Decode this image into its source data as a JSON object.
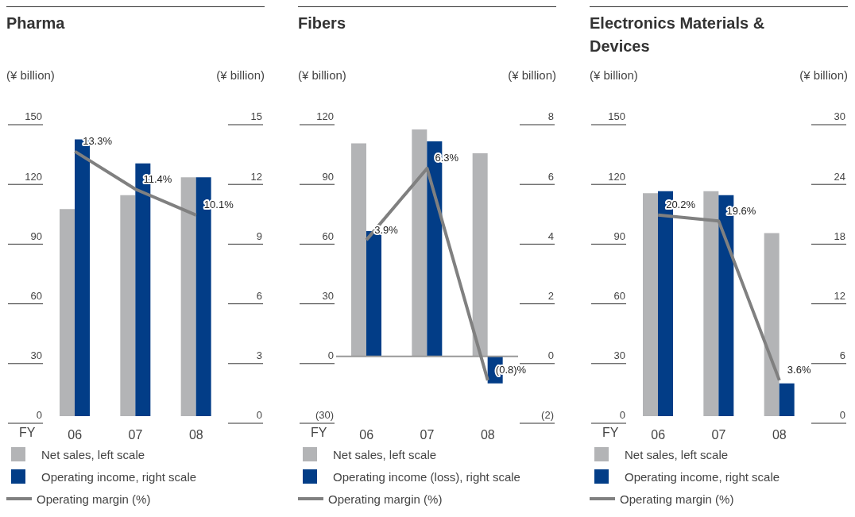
{
  "chart_data": [
    {
      "type": "bar",
      "title": "Pharma",
      "xlabel": "FY",
      "ylabel": "(¥ billion)",
      "y2label": "(¥ billion)",
      "categories": [
        "06",
        "07",
        "08"
      ],
      "ylim": [
        0,
        150
      ],
      "yticks": [
        0,
        30,
        60,
        90,
        120,
        150
      ],
      "y2lim": [
        0,
        15
      ],
      "y2ticks": [
        0,
        3,
        6,
        9,
        12,
        15
      ],
      "legend": "bottom",
      "series": [
        {
          "name": "Net sales, left scale",
          "color": "#b3b4b6",
          "values": [
            104,
            111,
            120
          ]
        },
        {
          "name": "Operating income, right scale",
          "color": "#023d87",
          "axis": "y2",
          "values": [
            13.9,
            12.7,
            12.0
          ]
        },
        {
          "name": "Operating margin (%)",
          "type": "line",
          "color": "#808080",
          "axis": "y2",
          "values": [
            13.3,
            11.4,
            10.1
          ],
          "value_labels": [
            "13.3%",
            "11.4%",
            "10.1%"
          ]
        }
      ]
    },
    {
      "type": "bar",
      "title": "Fibers",
      "xlabel": "FY",
      "ylabel": "(¥ billion)",
      "y2label": "(¥ billion)",
      "categories": [
        "06",
        "07",
        "08"
      ],
      "ylim": [
        -30,
        120
      ],
      "yticks": [
        {
          "value": -30,
          "label": "(30)"
        },
        0,
        30,
        60,
        90,
        120
      ],
      "y2lim": [
        -2,
        8
      ],
      "y2ticks": [
        {
          "value": -2,
          "label": "(2)"
        },
        0,
        2,
        4,
        6,
        8
      ],
      "legend": "bottom",
      "ref_lines": [
        {
          "axis": "y",
          "value": 0,
          "color": "#999999"
        }
      ],
      "series": [
        {
          "name": "Net sales, left scale",
          "color": "#b3b4b6",
          "values": [
            107,
            114,
            102
          ]
        },
        {
          "name": "Operating income (loss), right scale",
          "color": "#023d87",
          "axis": "y2",
          "values": [
            4.2,
            7.2,
            -0.9
          ]
        },
        {
          "name": "Operating margin (%)",
          "type": "line",
          "color": "#808080",
          "axis": "y2",
          "values": [
            3.9,
            6.3,
            -0.8
          ],
          "value_labels": [
            "3.9%",
            "6.3%",
            "(0.8)%"
          ]
        }
      ]
    },
    {
      "type": "bar",
      "title": "Electronics Materials & Devices",
      "xlabel": "FY",
      "ylabel": "(¥ billion)",
      "y2label": "(¥ billion)",
      "categories": [
        "06",
        "07",
        "08"
      ],
      "ylim": [
        0,
        150
      ],
      "yticks": [
        0,
        30,
        60,
        90,
        120,
        150
      ],
      "y2lim": [
        0,
        30
      ],
      "y2ticks": [
        0,
        6,
        12,
        18,
        24,
        30
      ],
      "legend": "bottom",
      "series": [
        {
          "name": "Net sales, left scale",
          "color": "#b3b4b6",
          "values": [
            112,
            113,
            92
          ]
        },
        {
          "name": "Operating income, right scale",
          "color": "#023d87",
          "axis": "y2",
          "values": [
            22.6,
            22.2,
            3.3
          ]
        },
        {
          "name": "Operating margin (%)",
          "type": "line",
          "color": "#808080",
          "axis": "y2",
          "values": [
            20.2,
            19.6,
            3.6
          ],
          "value_labels": [
            "20.2%",
            "19.6%",
            "3.6%"
          ]
        }
      ]
    }
  ]
}
